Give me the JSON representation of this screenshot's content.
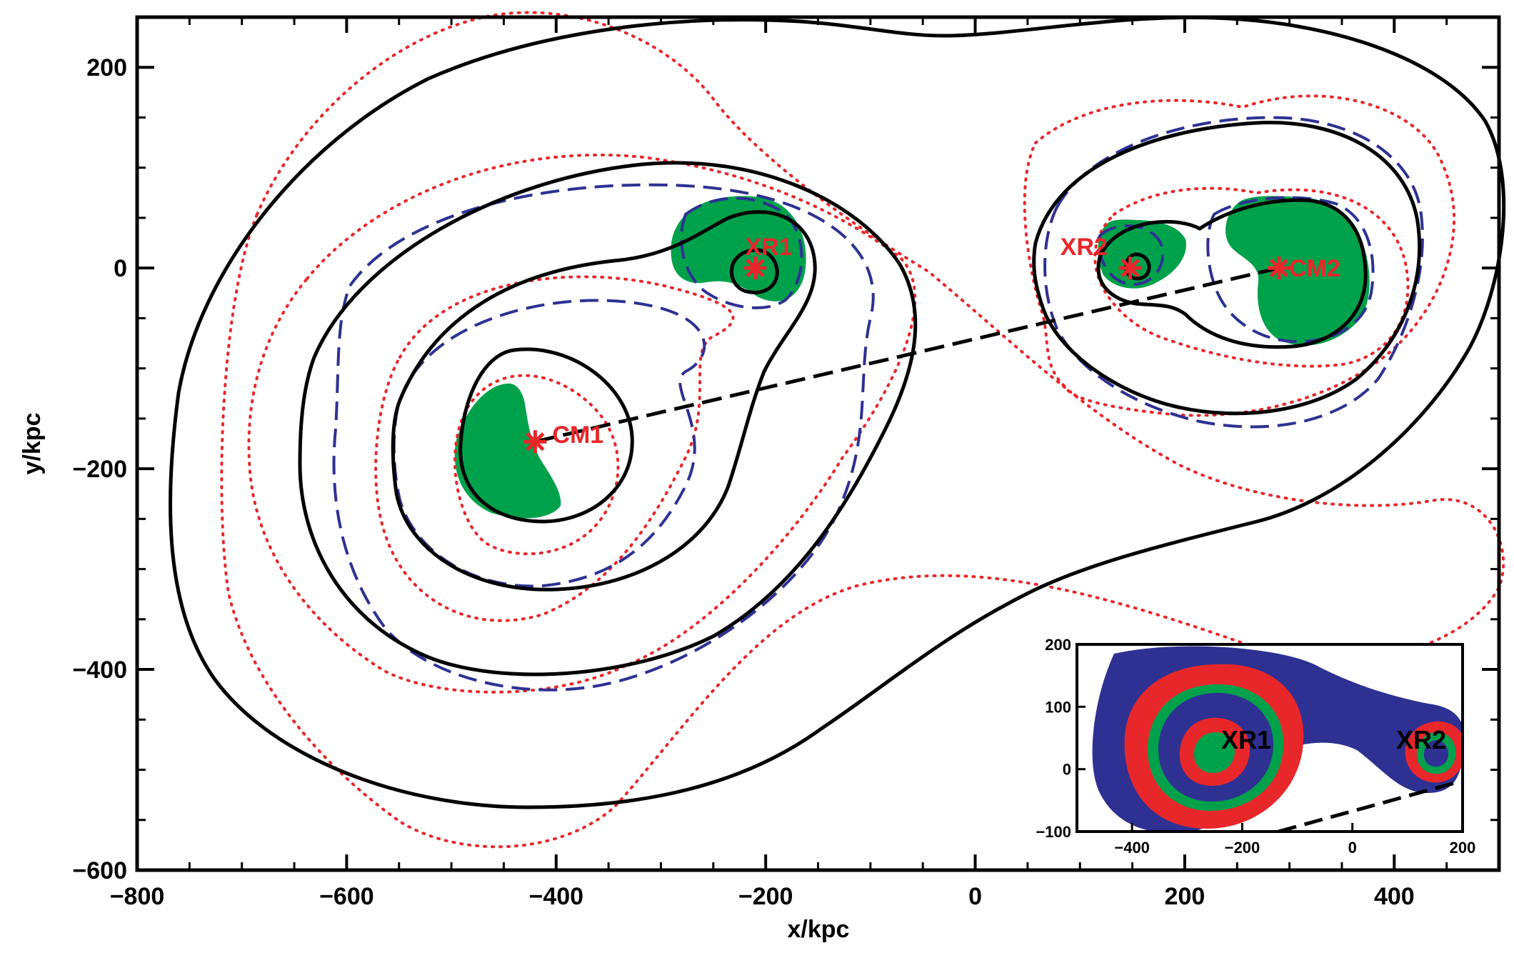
{
  "chart_data": {
    "type": "contour",
    "xlabel": "x/kpc",
    "ylabel": "y/kpc",
    "xlim": [
      -800,
      500
    ],
    "ylim": [
      -600,
      250
    ],
    "x_ticks": [
      -800,
      -600,
      -400,
      -200,
      0,
      200,
      400
    ],
    "y_ticks": [
      200,
      0,
      -200,
      -400,
      -600
    ],
    "points": [
      {
        "label": "CM1",
        "x": -420,
        "y": -173
      },
      {
        "label": "XR1",
        "x": -210,
        "y": 0
      },
      {
        "label": "XR2",
        "x": 148,
        "y": 0
      },
      {
        "label": "CM2",
        "x": 290,
        "y": 0
      }
    ],
    "line": {
      "from": "CM1",
      "to": "CM2",
      "style": "dashed"
    },
    "layers": {
      "solid_contours_color": "#000000",
      "dotted_contours_color": "#e8272b",
      "dashed_contours_color": "#2e3192",
      "filled_regions_color": "#00a14b"
    },
    "inset": {
      "xlim": [
        -500,
        200
      ],
      "ylim": [
        -100,
        200
      ],
      "x_ticks": [
        -400,
        -200,
        0,
        200
      ],
      "y_ticks": [
        200,
        100,
        0,
        -100
      ],
      "labels": [
        {
          "label": "XR1",
          "x": -210,
          "y": 0
        },
        {
          "label": "XR2",
          "x": 148,
          "y": 0
        }
      ],
      "colors": [
        "#2e3192",
        "#e8272b",
        "#00a14b"
      ]
    }
  }
}
